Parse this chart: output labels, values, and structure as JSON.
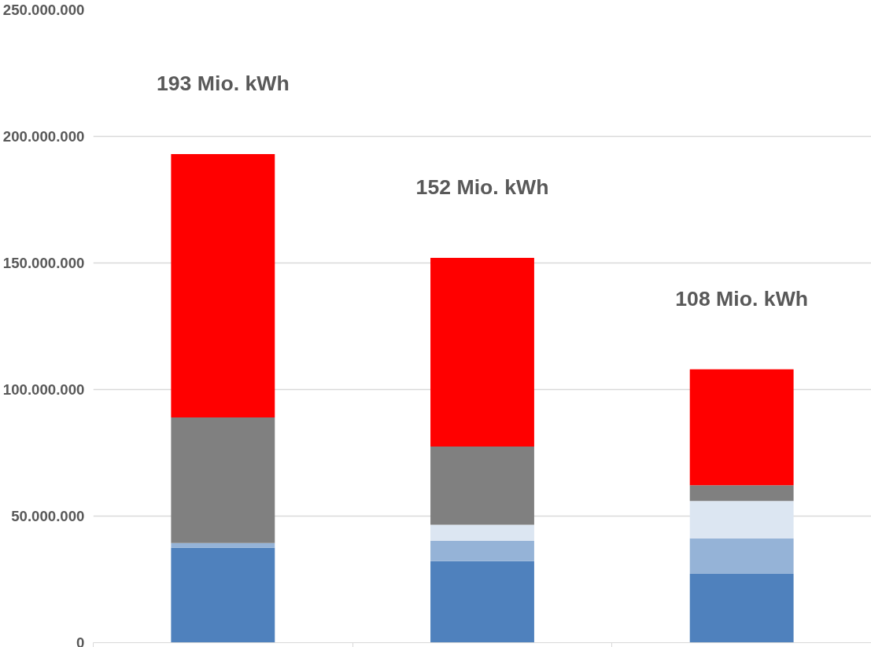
{
  "chart_data": {
    "type": "bar",
    "stacked": true,
    "categories": [
      null,
      null,
      null
    ],
    "series": [
      {
        "color": "#4f81bd",
        "values": [
          37500000,
          32200000,
          27200000
        ]
      },
      {
        "color": "#95b3d7",
        "values": [
          1900000,
          8100000,
          14000000
        ]
      },
      {
        "color": "#dce6f2",
        "values": [
          0,
          6300000,
          14800000
        ]
      },
      {
        "color": "#808080",
        "values": [
          49600000,
          30900000,
          6200000
        ]
      },
      {
        "color": "#ff0000",
        "values": [
          104000000,
          74500000,
          45800000
        ]
      }
    ],
    "annotations": [
      "193 Mio. kWh",
      "152 Mio. kWh",
      "108 Mio. kWh"
    ],
    "ylim": [
      0,
      250000000
    ],
    "yticks": [
      {
        "value": 0,
        "label": "0"
      },
      {
        "value": 50000000,
        "label": "50.000.000"
      },
      {
        "value": 100000000,
        "label": "100.000.000"
      },
      {
        "value": 150000000,
        "label": "150.000.000"
      },
      {
        "value": 200000000,
        "label": "200.000.000"
      },
      {
        "value": 250000000,
        "label": "250.000.000"
      }
    ],
    "grid": "y"
  }
}
